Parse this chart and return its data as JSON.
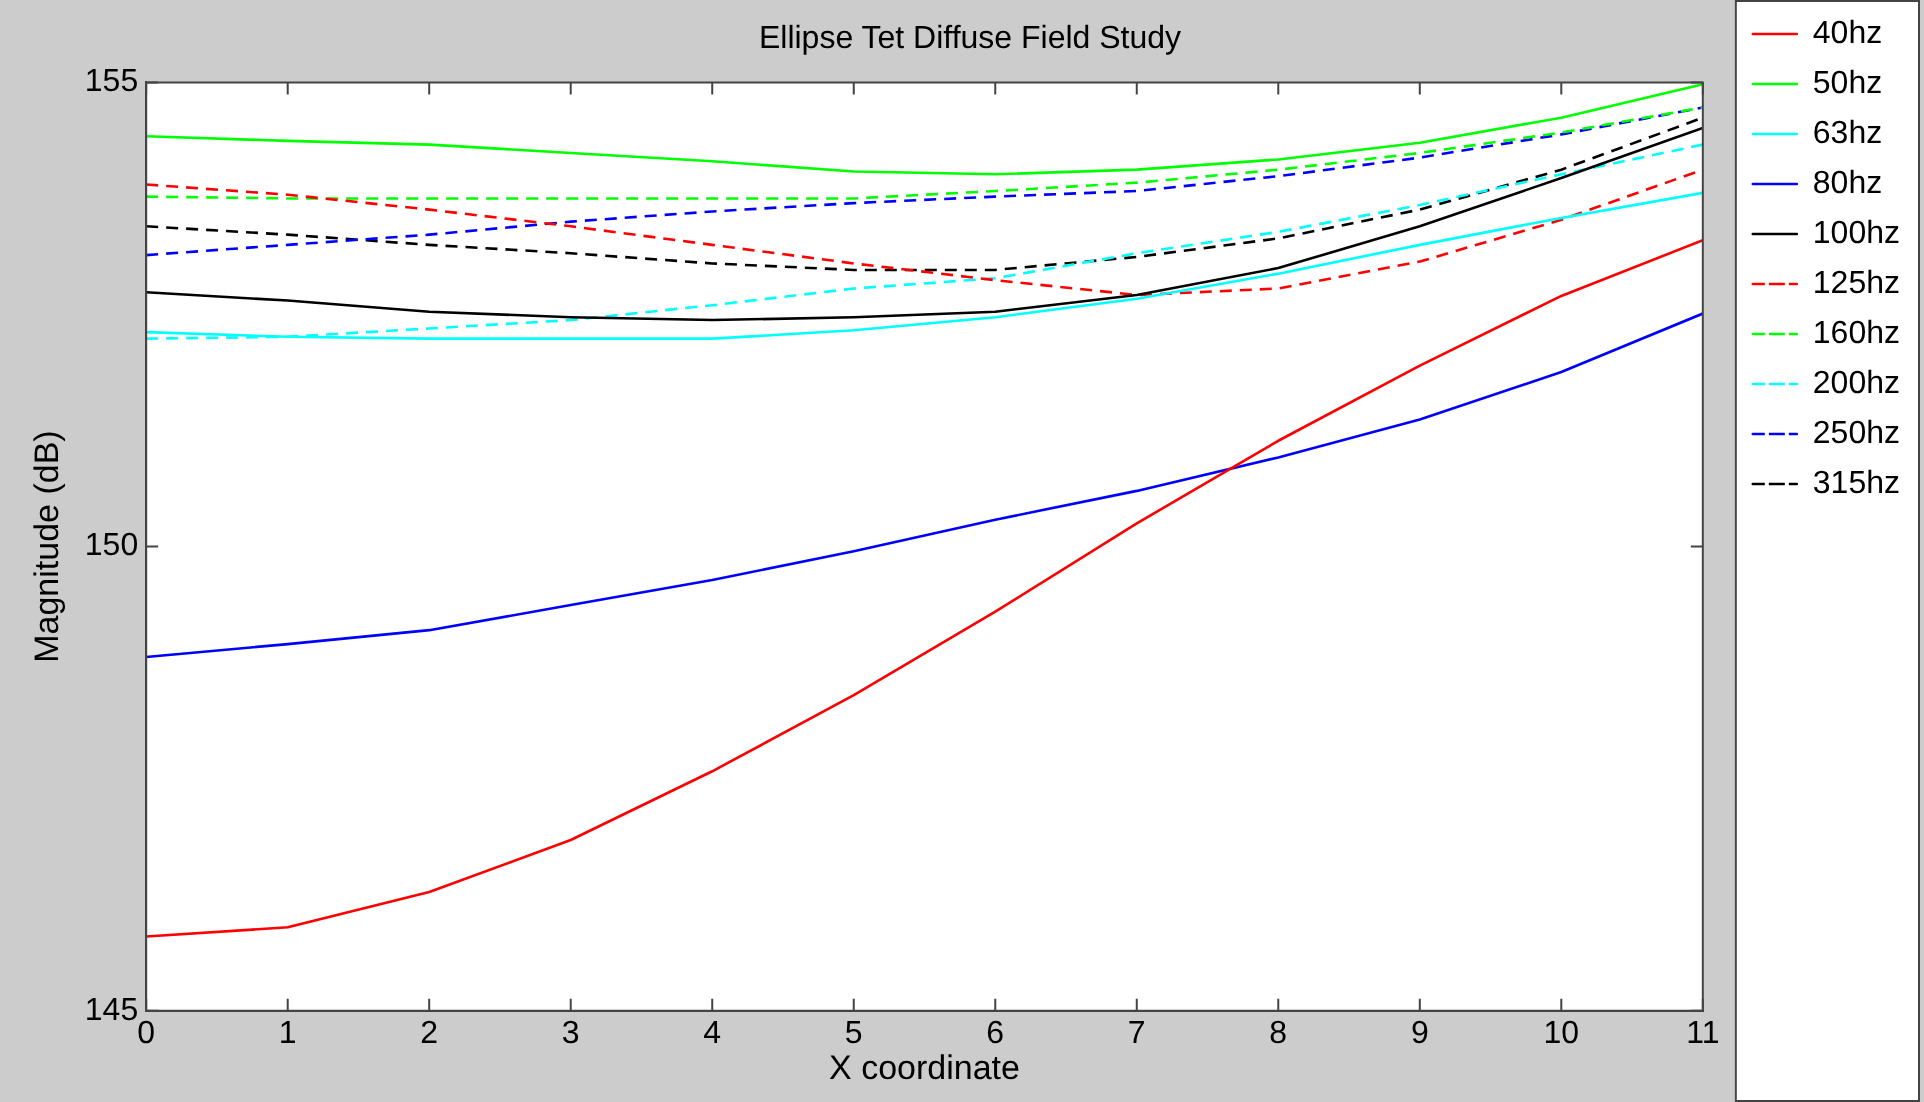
{
  "chart_data": {
    "type": "line",
    "title": "Ellipse Tet Diffuse Field Study",
    "xlabel": "X coordinate",
    "ylabel": "Magnitude (dB)",
    "x": [
      0,
      1,
      2,
      3,
      4,
      5,
      6,
      7,
      8,
      9,
      10,
      11
    ],
    "xlim": [
      0,
      11
    ],
    "xticks": [
      0,
      1,
      2,
      3,
      4,
      5,
      6,
      7,
      8,
      9,
      10,
      11
    ],
    "ylim": [
      145,
      155
    ],
    "yticks": [
      145,
      150,
      155
    ],
    "grid": false,
    "legend": "right",
    "marker": "none",
    "series": [
      {
        "name": "40hz",
        "color": "#ff0000",
        "line_style": "solid",
        "values": [
          145.8,
          145.9,
          146.28,
          146.84,
          147.58,
          148.4,
          149.3,
          150.25,
          151.14,
          151.95,
          152.7,
          153.3
        ]
      },
      {
        "name": "50hz",
        "color": "#00ff00",
        "line_style": "solid",
        "values": [
          154.42,
          154.37,
          154.33,
          154.24,
          154.15,
          154.04,
          154.01,
          154.06,
          154.17,
          154.35,
          154.62,
          154.98
        ]
      },
      {
        "name": "63hz",
        "color": "#00ffff",
        "line_style": "solid",
        "values": [
          152.31,
          152.26,
          152.24,
          152.24,
          152.24,
          152.33,
          152.47,
          152.67,
          152.94,
          153.25,
          153.54,
          153.81
        ]
      },
      {
        "name": "80hz",
        "color": "#0000ff",
        "line_style": "solid",
        "values": [
          148.81,
          148.95,
          149.1,
          149.37,
          149.64,
          149.95,
          150.29,
          150.6,
          150.96,
          151.37,
          151.88,
          152.51
        ]
      },
      {
        "name": "100hz",
        "color": "#000000",
        "line_style": "solid",
        "values": [
          152.74,
          152.65,
          152.53,
          152.47,
          152.44,
          152.47,
          152.53,
          152.71,
          153.0,
          153.45,
          153.97,
          154.51
        ]
      },
      {
        "name": "125hz",
        "color": "#ff0000",
        "line_style": "dashed",
        "values": [
          153.9,
          153.79,
          153.63,
          153.45,
          153.25,
          153.05,
          152.87,
          152.71,
          152.78,
          153.07,
          153.52,
          154.06
        ]
      },
      {
        "name": "160hz",
        "color": "#00ff00",
        "line_style": "dashed",
        "values": [
          153.77,
          153.75,
          153.75,
          153.75,
          153.75,
          153.75,
          153.83,
          153.92,
          154.06,
          154.24,
          154.46,
          154.73
        ]
      },
      {
        "name": "200hz",
        "color": "#00ffff",
        "line_style": "dashed",
        "values": [
          152.24,
          152.26,
          152.35,
          152.44,
          152.6,
          152.78,
          152.89,
          153.16,
          153.39,
          153.68,
          154.01,
          154.33
        ]
      },
      {
        "name": "250hz",
        "color": "#0000ff",
        "line_style": "dashed",
        "values": [
          153.14,
          153.25,
          153.36,
          153.5,
          153.61,
          153.7,
          153.77,
          153.83,
          153.99,
          154.19,
          154.44,
          154.73
        ]
      },
      {
        "name": "315hz",
        "color": "#000000",
        "line_style": "dashed",
        "values": [
          153.45,
          153.36,
          153.25,
          153.16,
          153.05,
          152.98,
          152.98,
          153.12,
          153.32,
          153.63,
          154.06,
          154.62
        ]
      }
    ]
  }
}
